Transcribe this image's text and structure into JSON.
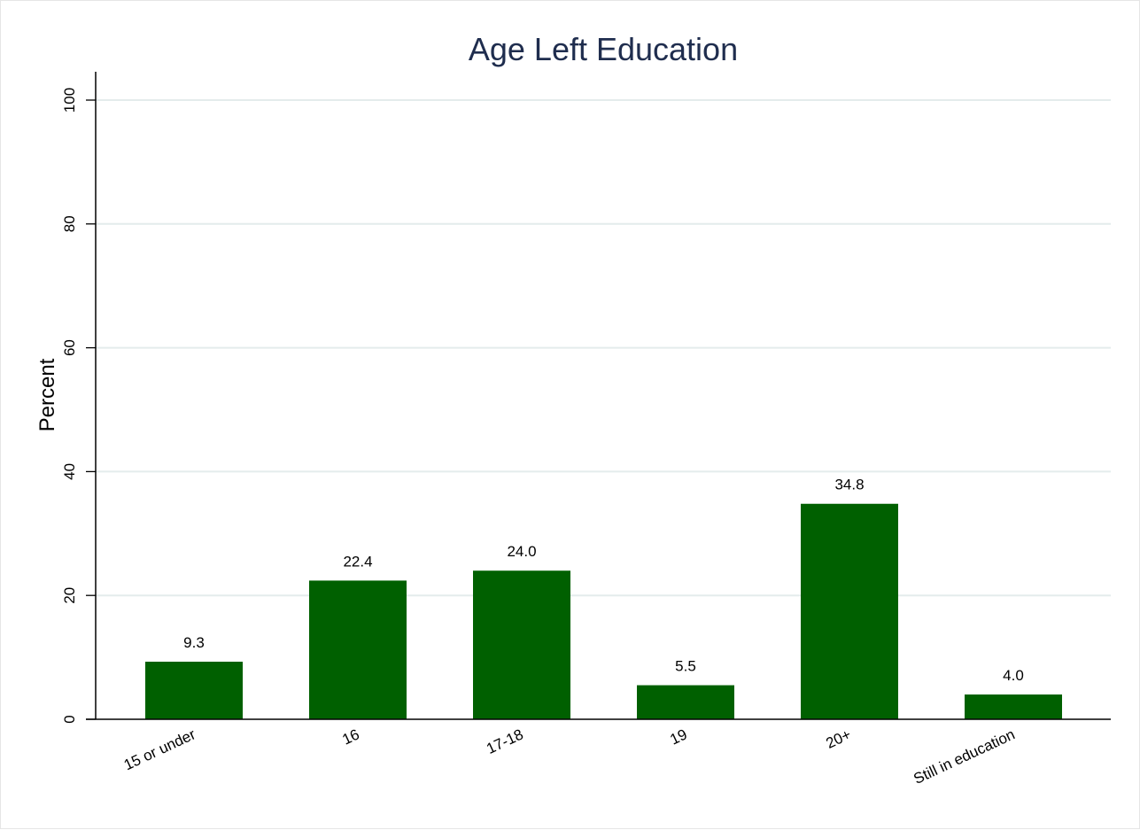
{
  "chart_data": {
    "type": "bar",
    "title": "Age Left Education",
    "xlabel": "",
    "ylabel": "Percent",
    "categories": [
      "15 or under",
      "16",
      "17-18",
      "19",
      "20+",
      "Still in education"
    ],
    "values": [
      9.3,
      22.4,
      24.0,
      5.5,
      34.8,
      4.0
    ],
    "data_labels": [
      "9.3",
      "22.4",
      "24.0",
      "5.5",
      "34.8",
      "4.0"
    ],
    "ylim": [
      0,
      100
    ],
    "yticks": [
      0,
      20,
      40,
      60,
      80,
      100
    ],
    "ytick_labels": [
      "0",
      "20",
      "40",
      "60",
      "80",
      "100"
    ],
    "grid": true,
    "legend": "none",
    "colors": {
      "bar": "#006000",
      "grid": "#e4ecec",
      "title": "#1f2d4e",
      "axis": "#000000"
    }
  }
}
